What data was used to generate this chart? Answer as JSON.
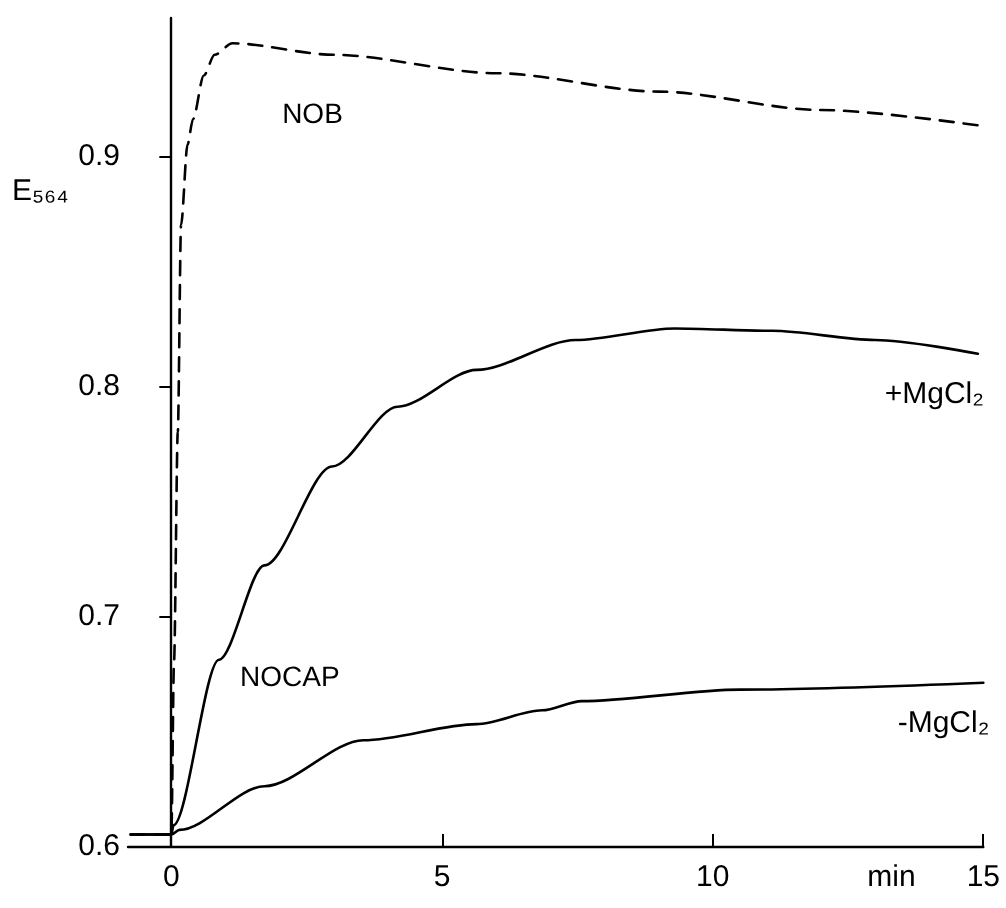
{
  "chart_data": {
    "type": "line",
    "ylabel": "E₅₆₄",
    "xlabel": "min",
    "xlim": [
      -0.8,
      15
    ],
    "xticks": [
      0,
      5,
      10,
      15
    ],
    "ylim": [
      0.6,
      0.96
    ],
    "yticks": [
      0.6,
      0.7,
      0.8,
      0.9
    ],
    "grid": false,
    "legend": false,
    "marker": "none",
    "annotations": [
      "NOCAP"
    ],
    "series": [
      {
        "name": "NOB",
        "color": "#000000",
        "line_style": "dashed",
        "x": [
          -0.75,
          0,
          0.05,
          0.12,
          0.18,
          0.3,
          0.4,
          0.6,
          0.8,
          1.13,
          3,
          6,
          9,
          12,
          15
        ],
        "values": [
          0.605,
          0.605,
          0.68,
          0.78,
          0.87,
          0.905,
          0.916,
          0.935,
          0.944,
          0.949,
          0.944,
          0.936,
          0.928,
          0.92,
          0.913
        ]
      },
      {
        "name": "+MgCl₂",
        "color": "#000000",
        "line_style": "solid",
        "x": [
          -0.75,
          0,
          0.04,
          0.88,
          1.72,
          2.97,
          4.18,
          5.64,
          7.47,
          9.3,
          11.1,
          13,
          14.9
        ],
        "values": [
          0.605,
          0.605,
          0.609,
          0.681,
          0.722,
          0.765,
          0.791,
          0.807,
          0.82,
          0.825,
          0.824,
          0.82,
          0.814
        ]
      },
      {
        "name": "-MgCl₂",
        "color": "#000000",
        "line_style": "solid",
        "x": [
          -0.75,
          0,
          0.15,
          1.72,
          3.55,
          5.64,
          6.85,
          7.58,
          10.5,
          15
        ],
        "values": [
          0.605,
          0.605,
          0.607,
          0.626,
          0.646,
          0.653,
          0.659,
          0.663,
          0.668,
          0.671
        ]
      }
    ]
  }
}
